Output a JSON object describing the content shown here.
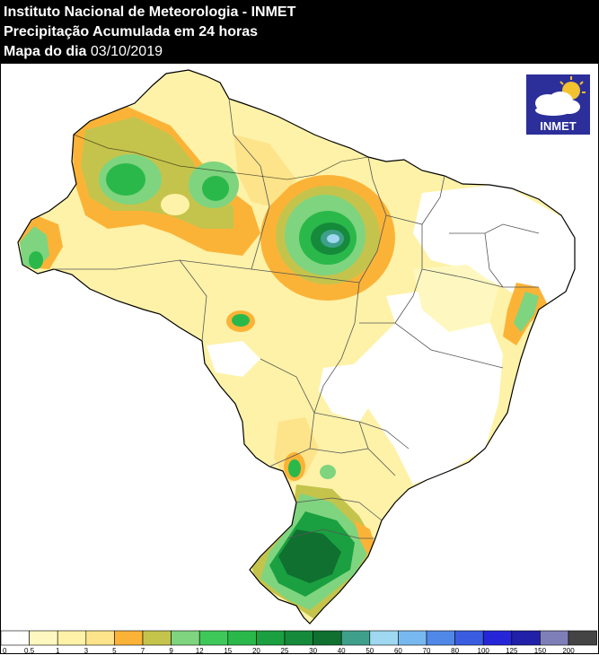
{
  "header": {
    "institute": "Instituto Nacional de Meteorologia - INMET",
    "product": "Precipitação Acumulada em 24 horas",
    "date_label": "Mapa do dia",
    "date_value": "03/10/2019"
  },
  "logo": {
    "text": "INMET"
  },
  "legend": {
    "bins": [
      {
        "label": "0",
        "color": "#ffffff"
      },
      {
        "label": "0.5",
        "color": "#fef8c0"
      },
      {
        "label": "1",
        "color": "#fef2a8"
      },
      {
        "label": "3",
        "color": "#fde48a"
      },
      {
        "label": "5",
        "color": "#fbb337"
      },
      {
        "label": "7",
        "color": "#c4c44c"
      },
      {
        "label": "9",
        "color": "#7fd47f"
      },
      {
        "label": "12",
        "color": "#3fc85a"
      },
      {
        "label": "15",
        "color": "#2ab84a"
      },
      {
        "label": "20",
        "color": "#1aa040"
      },
      {
        "label": "25",
        "color": "#158a3a"
      },
      {
        "label": "30",
        "color": "#0f7030"
      },
      {
        "label": "40",
        "color": "#3ea08a"
      },
      {
        "label": "50",
        "color": "#9fd8f0"
      },
      {
        "label": "60",
        "color": "#78b8f0"
      },
      {
        "label": "70",
        "color": "#5088e8"
      },
      {
        "label": "80",
        "color": "#3a5ce0"
      },
      {
        "label": "100",
        "color": "#2626d8"
      },
      {
        "label": "125",
        "color": "#2020a8"
      },
      {
        "label": "150",
        "color": "#7f7fb8"
      },
      {
        "label": "200",
        "color": "#444444"
      }
    ]
  }
}
